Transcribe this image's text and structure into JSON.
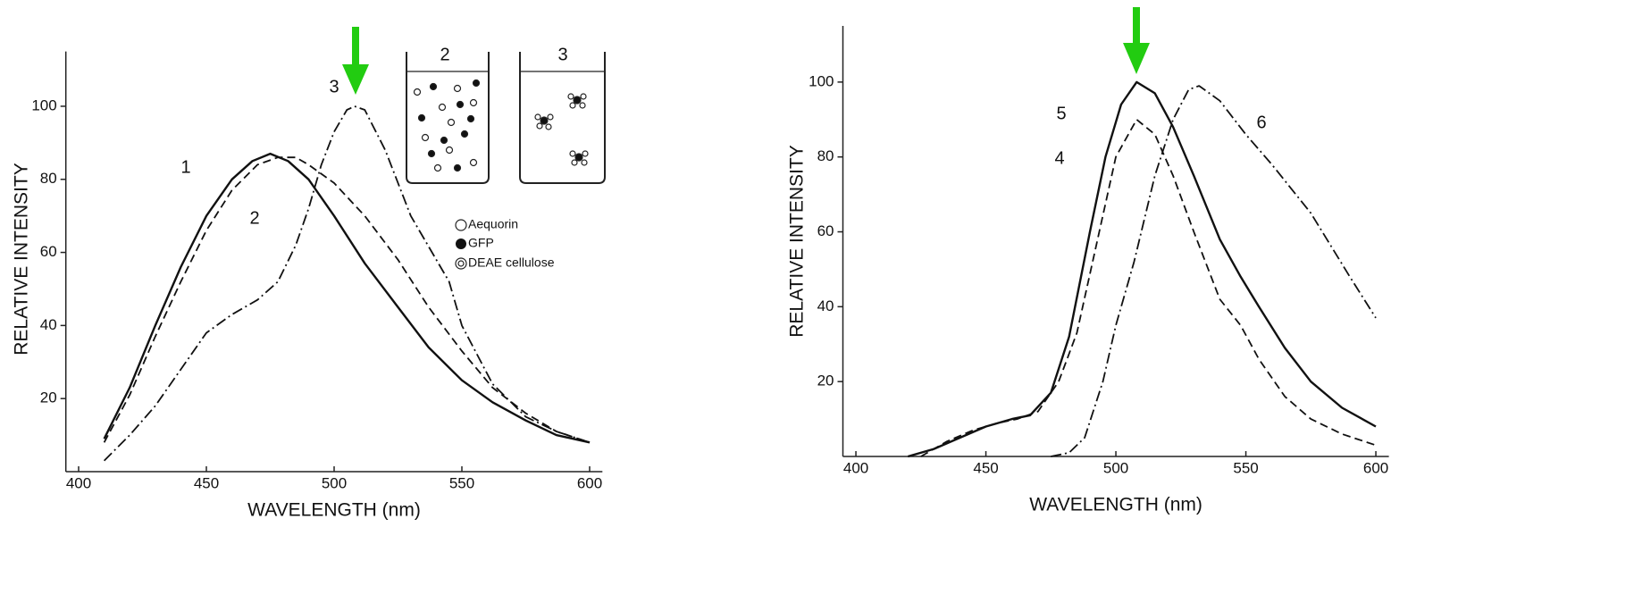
{
  "chart_data": [
    {
      "type": "line",
      "x_label": "WAVELENGTH (nm)",
      "y_label": "RELATIVE INTENSITY",
      "xlim": [
        395,
        605
      ],
      "ylim": [
        0,
        115
      ],
      "xticks": [
        400,
        450,
        500,
        550,
        600
      ],
      "yticks": [
        20,
        40,
        60,
        80,
        100
      ],
      "grid": false,
      "series": [
        {
          "name": "1",
          "color": "#111111",
          "style": "solid",
          "x": [
            410,
            420,
            430,
            440,
            450,
            460,
            468,
            475,
            482,
            490,
            500,
            512,
            525,
            537,
            550,
            562,
            575,
            587,
            600
          ],
          "values": [
            9,
            23,
            40,
            56,
            70,
            80,
            85,
            87,
            85,
            80,
            70,
            57,
            45,
            34,
            25,
            19,
            14,
            10,
            8
          ]
        },
        {
          "name": "2",
          "color": "#111111",
          "style": "dashed",
          "x": [
            410,
            420,
            430,
            440,
            450,
            460,
            470,
            478,
            485,
            490,
            500,
            512,
            525,
            537,
            550,
            562,
            575,
            587,
            600
          ],
          "values": [
            8,
            21,
            37,
            52,
            66,
            77,
            84,
            86,
            86,
            84,
            79,
            70,
            58,
            45,
            33,
            23,
            16,
            11,
            8
          ]
        },
        {
          "name": "3",
          "color": "#111111",
          "style": "dashdot",
          "x": [
            410,
            420,
            430,
            440,
            450,
            460,
            470,
            478,
            485,
            490,
            495,
            500,
            505,
            508,
            512,
            520,
            530,
            540,
            545,
            550,
            562,
            575,
            587,
            600
          ],
          "values": [
            3,
            10,
            18,
            28,
            38,
            43,
            47,
            52,
            62,
            72,
            84,
            93,
            99,
            100,
            99,
            88,
            70,
            58,
            52,
            40,
            24,
            15,
            11,
            8
          ]
        }
      ],
      "inset": {
        "beakers": [
          "2",
          "3"
        ],
        "legend": [
          "Aequorin",
          "GFP",
          "DEAE cellulose"
        ]
      }
    },
    {
      "type": "line",
      "x_label": "WAVELENGTH (nm)",
      "y_label": "RELATIVE INTENSITY",
      "xlim": [
        395,
        605
      ],
      "ylim": [
        0,
        115
      ],
      "xticks": [
        400,
        450,
        500,
        550,
        600
      ],
      "yticks": [
        20,
        40,
        60,
        80,
        100
      ],
      "grid": false,
      "series": [
        {
          "name": "5",
          "color": "#111111",
          "style": "solid",
          "x": [
            420,
            430,
            440,
            450,
            460,
            467,
            475,
            482,
            490,
            496,
            502,
            508,
            515,
            522,
            530,
            540,
            548,
            555,
            565,
            575,
            587,
            600
          ],
          "values": [
            0,
            2,
            5,
            8,
            10,
            11,
            17,
            32,
            60,
            80,
            94,
            100,
            97,
            88,
            75,
            58,
            48,
            40,
            29,
            20,
            13,
            8
          ]
        },
        {
          "name": "4",
          "color": "#111111",
          "style": "dashed",
          "x": [
            425,
            435,
            445,
            455,
            462,
            470,
            478,
            485,
            492,
            500,
            508,
            515,
            522,
            530,
            540,
            548,
            555,
            565,
            575,
            587,
            600
          ],
          "values": [
            0,
            4,
            7,
            9,
            10,
            12,
            20,
            33,
            55,
            80,
            90,
            86,
            75,
            60,
            42,
            35,
            26,
            16,
            10,
            6,
            3
          ]
        },
        {
          "name": "6",
          "color": "#111111",
          "style": "dashdot",
          "x": [
            475,
            482,
            488,
            495,
            500,
            507,
            515,
            522,
            528,
            532,
            540,
            550,
            560,
            575,
            590,
            600
          ],
          "values": [
            0,
            1,
            5,
            20,
            35,
            52,
            75,
            90,
            98,
            99,
            95,
            86,
            78,
            65,
            48,
            37
          ]
        }
      ]
    }
  ]
}
